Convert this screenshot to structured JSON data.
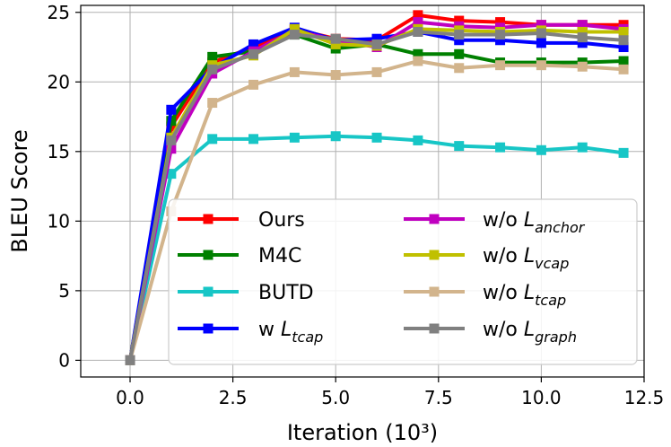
{
  "chart_data": {
    "type": "line",
    "title": "",
    "xlabel": "Iteration (10³)",
    "ylabel": "BLEU Score",
    "xlim": [
      -1.2,
      12.5
    ],
    "ylim": [
      -1.2,
      25.5
    ],
    "xticks": [
      0.0,
      2.5,
      5.0,
      7.5,
      10.0,
      12.5
    ],
    "xtick_labels": [
      "0.0",
      "2.5",
      "5.0",
      "7.5",
      "10.0",
      "12.5"
    ],
    "yticks": [
      0,
      5,
      10,
      15,
      20,
      25
    ],
    "ytick_labels": [
      "0",
      "5",
      "10",
      "15",
      "20",
      "25"
    ],
    "grid": true,
    "legend_position": "lower-right",
    "x": [
      0,
      1,
      2,
      3,
      4,
      5,
      6,
      7,
      8,
      9,
      10,
      11,
      12
    ],
    "series": [
      {
        "name": "Ours",
        "label_main": "Ours",
        "label_sub": "",
        "color": "#ff0000",
        "values": [
          0,
          16.8,
          21.4,
          22.5,
          23.8,
          23.1,
          23.0,
          24.8,
          24.4,
          24.3,
          24.1,
          24.1,
          24.1
        ]
      },
      {
        "name": "M4C",
        "label_main": "M4C",
        "label_sub": "",
        "color": "#008000",
        "values": [
          0,
          17.2,
          21.8,
          22.2,
          23.4,
          22.4,
          22.7,
          22.0,
          22.0,
          21.4,
          21.4,
          21.4,
          21.5
        ]
      },
      {
        "name": "BUTD",
        "label_main": "BUTD",
        "label_sub": "",
        "color": "#17c6c6",
        "values": [
          0,
          13.4,
          15.9,
          15.9,
          16.0,
          16.1,
          16.0,
          15.8,
          15.4,
          15.3,
          15.1,
          15.3,
          14.9
        ]
      },
      {
        "name": "w L_tcap",
        "label_main": "w L",
        "label_sub": "tcap",
        "color": "#0000ff",
        "values": [
          0,
          18.0,
          21.0,
          22.7,
          23.9,
          23.0,
          23.1,
          23.6,
          23.0,
          23.0,
          22.8,
          22.8,
          22.5
        ]
      },
      {
        "name": "w/o L_anchor",
        "label_main": "w/o L",
        "label_sub": "anchor",
        "color": "#c000c0",
        "values": [
          0,
          15.2,
          20.6,
          22.2,
          23.7,
          23.0,
          22.5,
          24.3,
          24.0,
          23.9,
          24.1,
          24.1,
          23.8
        ]
      },
      {
        "name": "w/o L_vcap",
        "label_main": "w/o L",
        "label_sub": "vcap",
        "color": "#c0c000",
        "values": [
          0,
          16.0,
          21.2,
          21.9,
          23.8,
          22.7,
          22.6,
          23.8,
          23.7,
          23.6,
          23.7,
          23.6,
          23.6
        ]
      },
      {
        "name": "w/o L_tcap",
        "label_main": "w/o L",
        "label_sub": "tcap",
        "color": "#d2b48c",
        "values": [
          0,
          10.7,
          18.5,
          19.8,
          20.7,
          20.5,
          20.7,
          21.5,
          21.0,
          21.2,
          21.2,
          21.1,
          20.9
        ]
      },
      {
        "name": "w/o L_graph",
        "label_main": "w/o L",
        "label_sub": "graph",
        "color": "#808080",
        "values": [
          0,
          15.8,
          20.9,
          22.0,
          23.4,
          23.1,
          22.7,
          23.6,
          23.4,
          23.4,
          23.5,
          23.2,
          23.0
        ]
      }
    ]
  }
}
